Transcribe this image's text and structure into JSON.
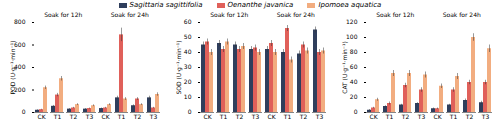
{
  "chart_data": [
    {
      "type": "bar",
      "y_label": "POD (U·g⁻¹·min⁻¹)",
      "categories": [
        "CK",
        "T1",
        "T2",
        "T3",
        "CK",
        "T1",
        "T2",
        "T3"
      ],
      "groups": [
        "Soak for 12h",
        "Soak for 24h"
      ],
      "ylim": [
        0,
        800
      ],
      "yticks": [
        0,
        200,
        400,
        600,
        800
      ],
      "series": [
        {
          "name": "Sagittaria sagittifolia",
          "color": "#2f3e5c",
          "values": [
            20,
            55,
            30,
            30,
            35,
            130,
            60,
            130
          ],
          "errors": [
            4,
            8,
            5,
            5,
            5,
            15,
            8,
            15
          ]
        },
        {
          "name": "Oenanthe javanica",
          "color": "#e0605a",
          "values": [
            25,
            155,
            40,
            35,
            40,
            690,
            120,
            40
          ],
          "errors": [
            4,
            15,
            6,
            5,
            6,
            60,
            12,
            6
          ]
        },
        {
          "name": "Ipomoea aquatica",
          "color": "#f2ad80",
          "values": [
            220,
            300,
            70,
            60,
            70,
            120,
            70,
            160
          ],
          "errors": [
            15,
            20,
            8,
            8,
            8,
            12,
            8,
            15
          ]
        }
      ]
    },
    {
      "type": "bar",
      "y_label": "SOD (U·g⁻¹·min⁻¹)",
      "categories": [
        "CK",
        "T1",
        "T2",
        "T3",
        "CK",
        "T1",
        "T2",
        "T3"
      ],
      "groups": [
        "Soak for 12h",
        "Soak for 24h"
      ],
      "ylim": [
        0,
        60
      ],
      "yticks": [
        0,
        10,
        20,
        30,
        40,
        50,
        60
      ],
      "series": [
        {
          "name": "Sagittaria sagittifolia",
          "color": "#2f3e5c",
          "values": [
            45,
            46,
            45,
            42,
            42,
            40,
            39,
            55
          ],
          "errors": [
            2,
            2,
            2,
            2,
            2,
            2,
            2,
            2
          ]
        },
        {
          "name": "Oenanthe javanica",
          "color": "#e0605a",
          "values": [
            47,
            42,
            42,
            43,
            46,
            56,
            45,
            40
          ],
          "errors": [
            2,
            2,
            2,
            2,
            2,
            2,
            2,
            2
          ]
        },
        {
          "name": "Ipomoea aquatica",
          "color": "#f2ad80",
          "values": [
            40,
            47,
            44,
            40,
            40,
            35,
            41,
            41
          ],
          "errors": [
            2,
            2,
            2,
            2,
            2,
            2,
            2,
            2
          ]
        }
      ]
    },
    {
      "type": "bar",
      "y_label": "CAT (U·g⁻¹·min⁻¹)",
      "categories": [
        "CK",
        "T1",
        "T2",
        "T3",
        "CK",
        "T1",
        "T2",
        "T3"
      ],
      "groups": [
        "Soak for 12h",
        "Soak for 24h"
      ],
      "ylim": [
        0,
        120
      ],
      "yticks": [
        0,
        20,
        40,
        60,
        80,
        100,
        120
      ],
      "series": [
        {
          "name": "Sagittaria sagittifolia",
          "color": "#2f3e5c",
          "values": [
            3,
            8,
            10,
            12,
            5,
            10,
            16,
            13
          ],
          "errors": [
            1,
            1,
            1,
            1,
            1,
            1,
            2,
            2
          ]
        },
        {
          "name": "Oenanthe javanica",
          "color": "#e0605a",
          "values": [
            6,
            12,
            36,
            30,
            5,
            30,
            40,
            40
          ],
          "errors": [
            1,
            2,
            3,
            3,
            1,
            3,
            3,
            3
          ]
        },
        {
          "name": "Ipomoea aquatica",
          "color": "#f2ad80",
          "values": [
            17,
            52,
            52,
            50,
            35,
            48,
            100,
            85
          ],
          "errors": [
            2,
            4,
            4,
            4,
            3,
            4,
            5,
            5
          ]
        }
      ]
    }
  ]
}
